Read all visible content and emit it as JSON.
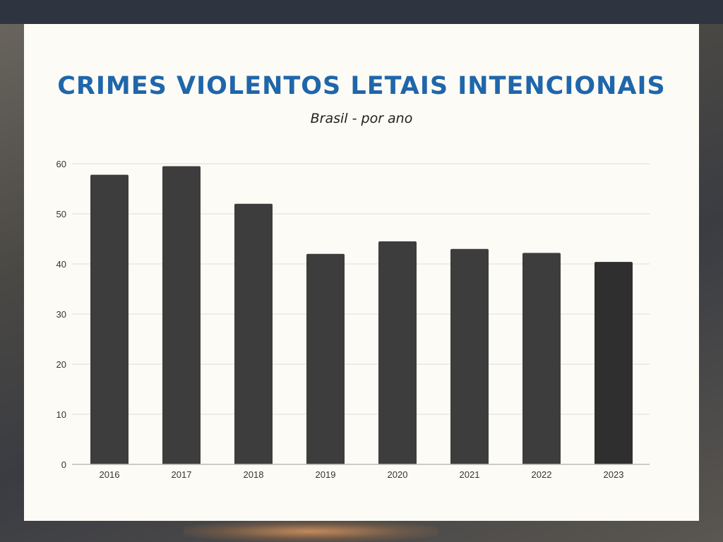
{
  "title": "CRIMES VIOLENTOS LETAIS INTENCIONAIS",
  "subtitle": "Brasil - por ano",
  "colors": {
    "title": "#1f66aa",
    "bar": "#3d3d3d",
    "bar_last": "#2f2f2f",
    "grid": "#dddddd",
    "axis": "#bdbdbd",
    "tick_text": "#333333"
  },
  "chart_data": {
    "type": "bar",
    "title": "CRIMES VIOLENTOS LETAIS INTENCIONAIS",
    "subtitle": "Brasil - por ano",
    "xlabel": "",
    "ylabel": "",
    "categories": [
      "2016",
      "2017",
      "2018",
      "2019",
      "2020",
      "2021",
      "2022",
      "2023"
    ],
    "values": [
      57.8,
      59.5,
      52.0,
      42.0,
      44.5,
      43.0,
      42.2,
      40.4
    ],
    "ylim": [
      0,
      60
    ],
    "yticks": [
      0,
      10,
      20,
      30,
      40,
      50,
      60
    ],
    "grid": true,
    "legend": "none"
  }
}
